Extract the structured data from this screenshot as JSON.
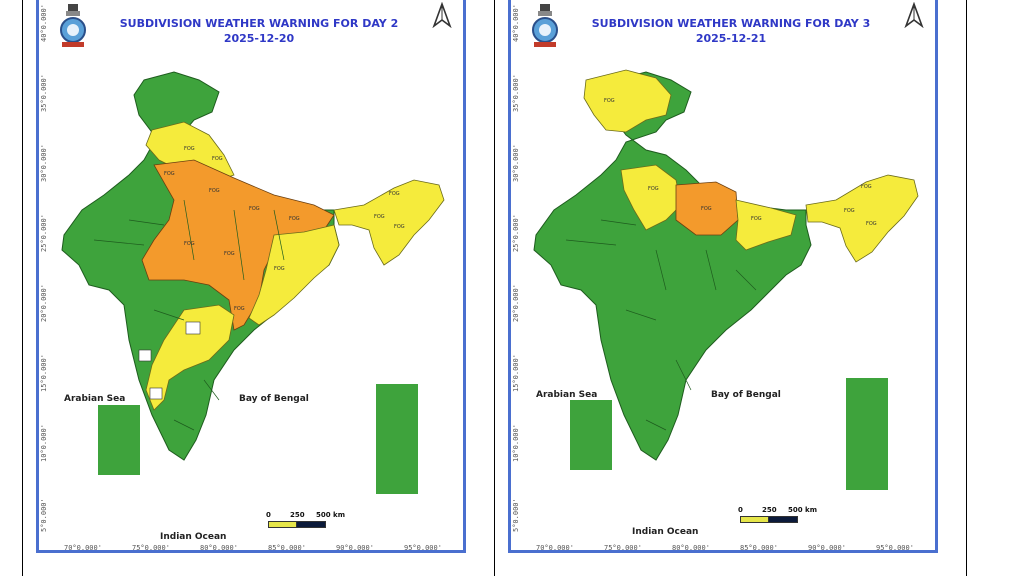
{
  "colors": {
    "green": "#3ea33c",
    "yellow": "#f5eb3c",
    "orange": "#f39a2c",
    "frame": "#4a6fcf",
    "title": "#2f38c6"
  },
  "panels": [
    {
      "title": "SUBDIVISION WEATHER WARNING FOR DAY 2",
      "date": "2025-12-20",
      "labels": {
        "arabian_sea": "Arabian Sea",
        "bay_of_bengal": "Bay of Bengal",
        "indian_ocean": "Indian Ocean"
      },
      "scale": {
        "zero": "0",
        "mid": "250",
        "end": "500 km"
      },
      "lat_ticks": [
        "40°0.000'",
        "35°0.000'",
        "30°0.000'",
        "25°0.000'",
        "20°0.000'",
        "15°0.000'",
        "10°0.000'",
        "5°0.000'"
      ],
      "lon_ticks": [
        "70°0.000'",
        "75°0.000'",
        "80°0.000'",
        "85°0.000'",
        "90°0.000'",
        "95°0.000'"
      ],
      "region_label": "FOG",
      "icons": {
        "logo": "imd-emblem-icon",
        "north": "north-arrow-icon"
      }
    },
    {
      "title": "SUBDIVISION WEATHER WARNING FOR DAY 3",
      "date": "2025-12-21",
      "labels": {
        "arabian_sea": "Arabian Sea",
        "bay_of_bengal": "Bay of Bengal",
        "indian_ocean": "Indian Ocean"
      },
      "scale": {
        "zero": "0",
        "mid": "250",
        "end": "500 km"
      },
      "lat_ticks": [
        "40°0.000'",
        "35°0.000'",
        "30°0.000'",
        "25°0.000'",
        "20°0.000'",
        "15°0.000'",
        "10°0.000'",
        "5°0.000'"
      ],
      "lon_ticks": [
        "70°0.000'",
        "75°0.000'",
        "80°0.000'",
        "85°0.000'",
        "90°0.000'",
        "95°0.000'"
      ],
      "region_label": "FOG",
      "icons": {
        "logo": "imd-emblem-icon",
        "north": "north-arrow-icon"
      }
    }
  ]
}
